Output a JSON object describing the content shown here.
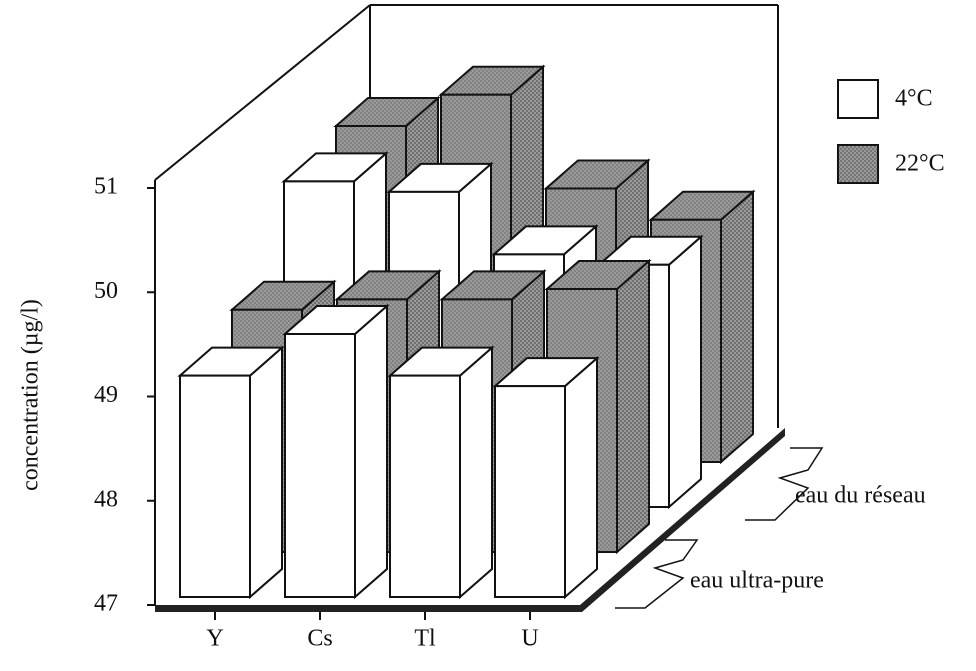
{
  "chart_data": {
    "type": "bar3d",
    "y_label": "concentration (µg/l)",
    "categories": [
      "Y",
      "Cs",
      "Tl",
      "U"
    ],
    "depth_categories": [
      "eau ultra-pure",
      "eau du réseau"
    ],
    "series": [
      {
        "name": "4°C",
        "color": "#ffffff",
        "values": [
          [
            49.2,
            49.6,
            49.2,
            49.1
          ],
          [
            50.2,
            50.1,
            49.5,
            49.4
          ]
        ]
      },
      {
        "name": "22°C",
        "color": "#9a9a9a",
        "values": [
          [
            49.4,
            49.5,
            49.5,
            49.6
          ],
          [
            50.3,
            50.6,
            49.7,
            49.4
          ]
        ]
      }
    ],
    "ylim": [
      47,
      51
    ],
    "yticks": [
      47,
      48,
      49,
      50,
      51
    ]
  }
}
